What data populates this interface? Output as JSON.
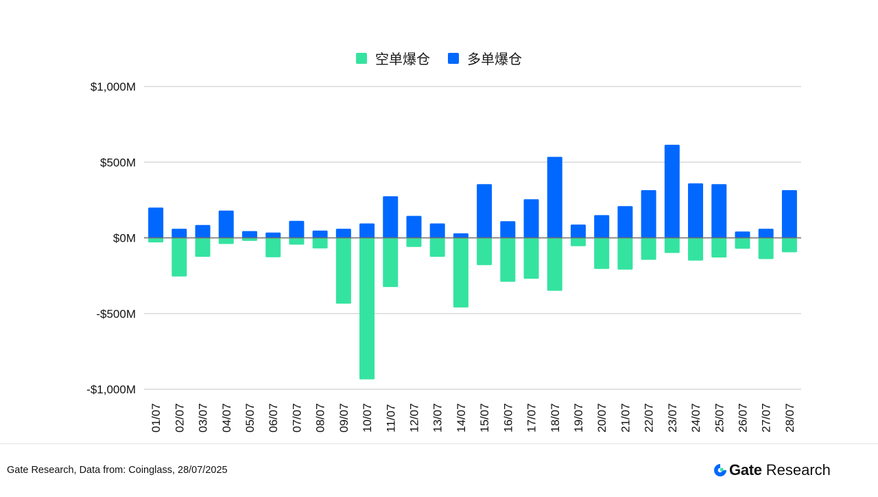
{
  "colors": {
    "short": "#35E3A0",
    "long": "#0068FF",
    "grid": "#d9d9d9",
    "zero_line": "#6e6e6e",
    "text": "#111111"
  },
  "legend": [
    {
      "label": "空单爆仓",
      "series": "short"
    },
    {
      "label": "多单爆仓",
      "series": "long"
    }
  ],
  "footer": {
    "source": "Gate Research, Data from: Coinglass, 28/07/2025",
    "brand_name": "Gate",
    "brand_suffix": "Research"
  },
  "chart_data": {
    "type": "bar",
    "stacked": "diverging",
    "title": "",
    "xlabel": "",
    "ylabel": "",
    "ylim": [
      -1000,
      1000
    ],
    "yticks": [
      1000,
      500,
      0,
      -500,
      -1000
    ],
    "ytick_labels": [
      "$1,000M",
      "$500M",
      "$0M",
      "-$500M",
      "-$1,000M"
    ],
    "grid": true,
    "legend_position": "top-center",
    "categories": [
      "01/07",
      "02/07",
      "03/07",
      "04/07",
      "05/07",
      "06/07",
      "07/07",
      "08/07",
      "09/07",
      "10/07",
      "11/07",
      "12/07",
      "13/07",
      "14/07",
      "15/07",
      "16/07",
      "17/07",
      "18/07",
      "19/07",
      "20/07",
      "21/07",
      "22/07",
      "23/07",
      "24/07",
      "25/07",
      "26/07",
      "27/07",
      "28/07"
    ],
    "series": [
      {
        "name": "空单爆仓",
        "key": "short",
        "values": [
          -30,
          -255,
          -125,
          -40,
          -20,
          -128,
          -45,
          -70,
          -435,
          -935,
          -325,
          -60,
          -125,
          -460,
          -180,
          -290,
          -270,
          -350,
          -55,
          -205,
          -210,
          -145,
          -100,
          -150,
          -130,
          -72,
          -140,
          -95
        ]
      },
      {
        "name": "多单爆仓",
        "key": "long",
        "values": [
          200,
          60,
          85,
          180,
          45,
          35,
          112,
          48,
          60,
          95,
          275,
          145,
          95,
          30,
          355,
          110,
          255,
          535,
          88,
          150,
          210,
          315,
          615,
          360,
          355,
          42,
          60,
          315
        ]
      }
    ]
  }
}
